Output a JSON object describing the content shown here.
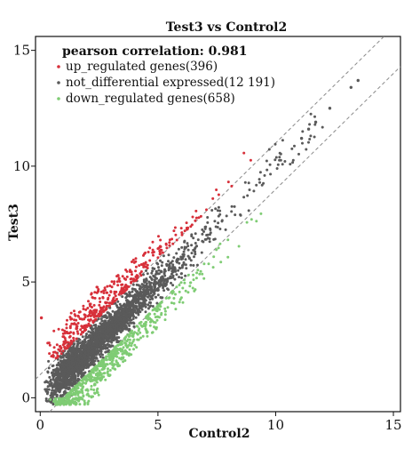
{
  "chart_data": {
    "type": "scatter",
    "title": "Test3 vs Control2",
    "xlabel": "Control2",
    "ylabel": "Test3",
    "xlim": [
      -0.2,
      15.3
    ],
    "ylim": [
      -0.6,
      15.6
    ],
    "xticks": [
      0,
      5,
      10,
      15
    ],
    "yticks": [
      0,
      5,
      10,
      15
    ],
    "grid": false,
    "legend_position": "top-left",
    "annotation": "pearson correlation: 0.981",
    "reference_lines": [
      {
        "intercept": 1.0,
        "slope": 1
      },
      {
        "intercept": -1.0,
        "slope": 1
      }
    ],
    "series": [
      {
        "name": "up_regulated genes(396)",
        "color": "#d7303a",
        "count": 396,
        "offset_range": [
          1.0,
          2.0
        ],
        "x_range": [
          0.2,
          9.0
        ]
      },
      {
        "name": "not_differential expressed(12 191)",
        "color": "#5a5a5a",
        "count": 12191,
        "offset_range": [
          -1.0,
          1.0
        ],
        "x_range": [
          0.2,
          12.0
        ]
      },
      {
        "name": "down_regulated genes(658)",
        "color": "#7fcc74",
        "count": 658,
        "offset_range": [
          -2.0,
          -1.0
        ],
        "x_range": [
          0.4,
          9.5
        ]
      }
    ],
    "outliers": [
      {
        "x": 0.05,
        "y": 3.45,
        "series": 0
      },
      {
        "x": 11.1,
        "y": 11.2,
        "series": 1
      },
      {
        "x": 11.4,
        "y": 11.6,
        "series": 1
      },
      {
        "x": 11.7,
        "y": 11.9,
        "series": 1
      },
      {
        "x": 13.2,
        "y": 13.4,
        "series": 1
      },
      {
        "x": 13.5,
        "y": 13.7,
        "series": 1
      },
      {
        "x": 12.3,
        "y": 12.5,
        "series": 1
      }
    ]
  }
}
